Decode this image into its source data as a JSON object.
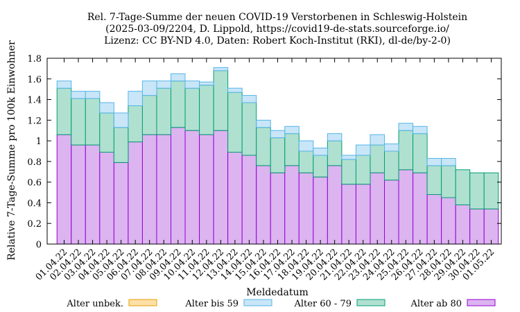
{
  "chart_data": {
    "type": "bar",
    "stacked": true,
    "title_lines": [
      "Rel. 7-Tage-Summe der neuen COVID-19 Verstorbenen in Schleswig-Holstein",
      "(2025-03-09/2204, D. Lippold, https://covid19-de-stats.sourceforge.io/",
      "Lizenz: CC BY-ND 4.0, Daten: Robert Koch-Institut (RKI), dl-de/by-2-0)"
    ],
    "xlabel": "Meldedatum",
    "ylabel": "Relative 7-Tage-Summe pro 100k Einwohner",
    "ylim": [
      0,
      1.8
    ],
    "yticks": [
      "0",
      "0.2",
      "0.4",
      "0.6",
      "0.8",
      "1",
      "1.2",
      "1.4",
      "1.6",
      "1.8"
    ],
    "grid": false,
    "legend_position": "bottom",
    "categories": [
      "01.04.22",
      "02.04.22",
      "03.04.22",
      "04.04.22",
      "05.04.22",
      "06.04.22",
      "07.04.22",
      "08.04.22",
      "09.04.22",
      "10.04.22",
      "11.04.22",
      "12.04.22",
      "13.04.22",
      "14.04.22",
      "15.04.22",
      "16.04.22",
      "17.04.22",
      "18.04.22",
      "19.04.22",
      "20.04.22",
      "21.04.22",
      "22.04.22",
      "23.04.22",
      "24.04.22",
      "25.04.22",
      "26.04.22",
      "27.04.22",
      "28.04.22",
      "29.04.22",
      "30.04.22",
      "01.05.22"
    ],
    "series": [
      {
        "name": "Alter ab 80",
        "fill": "#dcb4f0",
        "stroke": "#9400d3",
        "values": [
          1.06,
          0.96,
          0.96,
          0.89,
          0.79,
          0.99,
          1.06,
          1.06,
          1.13,
          1.1,
          1.06,
          1.1,
          0.89,
          0.86,
          0.76,
          0.69,
          0.76,
          0.69,
          0.65,
          0.76,
          0.58,
          0.58,
          0.69,
          0.62,
          0.72,
          0.69,
          0.48,
          0.45,
          0.38,
          0.34,
          0.34
        ]
      },
      {
        "name": "Alter 60 - 79",
        "fill": "#b0e0d0",
        "stroke": "#009e73",
        "values": [
          0.45,
          0.45,
          0.45,
          0.38,
          0.34,
          0.35,
          0.38,
          0.45,
          0.45,
          0.41,
          0.48,
          0.58,
          0.58,
          0.51,
          0.37,
          0.34,
          0.31,
          0.21,
          0.21,
          0.24,
          0.24,
          0.28,
          0.27,
          0.28,
          0.38,
          0.38,
          0.28,
          0.31,
          0.34,
          0.35,
          0.35
        ]
      },
      {
        "name": "Alter bis 59",
        "fill": "#c8e6f8",
        "stroke": "#56b4e9",
        "values": [
          0.07,
          0.07,
          0.07,
          0.1,
          0.14,
          0.14,
          0.14,
          0.07,
          0.07,
          0.07,
          0.03,
          0.03,
          0.04,
          0.07,
          0.07,
          0.07,
          0.07,
          0.1,
          0.07,
          0.07,
          0.04,
          0.1,
          0.1,
          0.07,
          0.07,
          0.07,
          0.07,
          0.07,
          0.0,
          0.0,
          0.0
        ]
      },
      {
        "name": "Alter unbek.",
        "fill": "#fde0a8",
        "stroke": "#e69f00",
        "values": [
          0,
          0,
          0,
          0,
          0,
          0,
          0,
          0,
          0,
          0,
          0,
          0,
          0,
          0,
          0,
          0,
          0,
          0,
          0,
          0,
          0,
          0,
          0,
          0,
          0,
          0,
          0,
          0,
          0,
          0,
          0
        ]
      }
    ],
    "legend_order": [
      "Alter unbek.",
      "Alter bis 59",
      "Alter 60 - 79",
      "Alter ab 80"
    ]
  }
}
